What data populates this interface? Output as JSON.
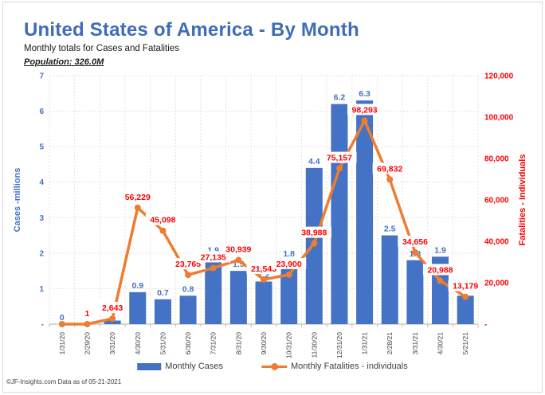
{
  "header": {
    "title": "United States of America - By Month",
    "subtitle": "Monthly totals for Cases and Fatalities",
    "population": "Population: 326.0M"
  },
  "footer": {
    "text": "©JF-Insights.com  Data as of 05-21-2021"
  },
  "colors": {
    "bar": "#4472c4",
    "line": "#ed7d31",
    "cases_label": "#4472c4",
    "fatalities_label": "#ff0000",
    "title": "#3f6cb7",
    "x_label": "#404040",
    "grid": "#e3e3e3",
    "axis_line": "#bfbfbf"
  },
  "chart_data": {
    "type": "combo bar+line, dual axis",
    "categories": [
      "1/31/20",
      "2/29/20",
      "3/31/20",
      "4/30/20",
      "5/31/20",
      "6/30/20",
      "7/31/20",
      "8/31/20",
      "9/30/20",
      "10/31/20",
      "11/30/20",
      "12/31/20",
      "1/31/21",
      "2/28/21",
      "3/31/21",
      "4/30/21",
      "5/21/21"
    ],
    "series": [
      {
        "name": "Monthly Cases",
        "type": "bar",
        "axis": "left",
        "values": [
          0,
          0,
          0.1,
          0.9,
          0.7,
          0.8,
          1.9,
          1.5,
          1.2,
          1.8,
          4.4,
          6.2,
          6.3,
          2.5,
          1.8,
          1.9,
          0.8
        ],
        "labels": [
          "0",
          "",
          "",
          "0.9",
          "0.7",
          "0.8",
          "1.9",
          "1.5",
          "1.2",
          "1.8",
          "4.4",
          "6.2",
          "6.3",
          "2.5",
          "1.8",
          "1.9",
          ""
        ]
      },
      {
        "name": "Monthly Fatalities - individuals",
        "type": "line",
        "axis": "right",
        "values": [
          0,
          1,
          2643,
          56229,
          45098,
          23765,
          27135,
          30939,
          21543,
          23900,
          38988,
          75157,
          98293,
          69832,
          34656,
          20988,
          13179
        ],
        "labels": [
          "",
          "1",
          "2,643",
          "56,229",
          "45,098",
          "23,765",
          "27,135",
          "30,939",
          "21,543",
          "23,900",
          "38,988",
          "75,157",
          "98,293",
          "69,832",
          "34,656",
          "20,988",
          "13,179"
        ]
      }
    ],
    "left_axis": {
      "title": "Cases -millions",
      "min": 0,
      "max": 7,
      "step": 1,
      "ticks": [
        "-",
        "1",
        "2",
        "3",
        "4",
        "5",
        "6",
        "7"
      ]
    },
    "right_axis": {
      "title": "Fatalities - Individuals",
      "min": 0,
      "max": 120000,
      "step": 20000,
      "ticks": [
        "-",
        "20,000",
        "40,000",
        "60,000",
        "80,000",
        "100,000",
        "120,000"
      ]
    },
    "grid": true,
    "legend_position": "bottom"
  }
}
